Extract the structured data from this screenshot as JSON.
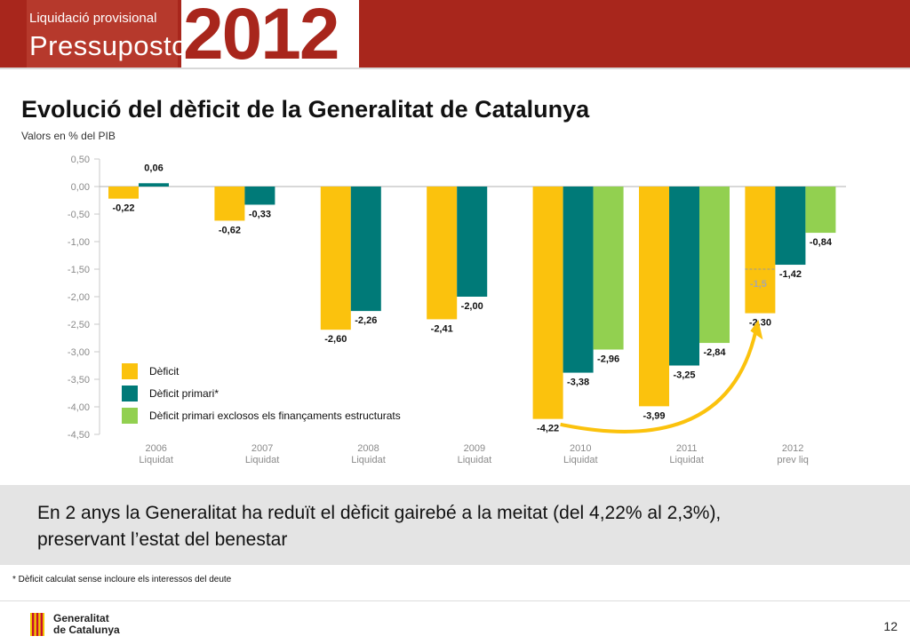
{
  "header": {
    "pretitle": "Liquidació provisional",
    "title": "Pressupostos",
    "year": "2012"
  },
  "slide": {
    "title": "Evolució del dèficit de la Generalitat de Catalunya",
    "subtitle": "Valors en % del PIB",
    "message_line1": "En 2 anys la Generalitat ha reduït el dèficit gairebé a la meitat (del 4,22% al 2,3%),",
    "message_line2": "preservant l’estat del benestar",
    "footnote": "* Dèficit calculat sense incloure els interessos del deute"
  },
  "footer": {
    "org_line1": "Generalitat",
    "org_line2": "de Catalunya",
    "page": "12"
  },
  "colors": {
    "banner": "#a8261c",
    "deficit": "#fbc20d",
    "primary": "#007a78",
    "structural": "#92d050",
    "arrow": "#fbc20d",
    "axis_text": "#8a8a8a"
  },
  "chart_data": {
    "type": "bar",
    "categories": [
      [
        "2006",
        "Liquidat"
      ],
      [
        "2007",
        "Liquidat"
      ],
      [
        "2008",
        "Liquidat"
      ],
      [
        "2009",
        "Liquidat"
      ],
      [
        "2010",
        "Liquidat"
      ],
      [
        "2011",
        "Liquidat"
      ],
      [
        "2012",
        "prev liq"
      ]
    ],
    "series": [
      {
        "name": "Dèficit",
        "color": "#fbc20d",
        "values": [
          -0.22,
          -0.62,
          -2.6,
          -2.41,
          -4.22,
          -3.99,
          -2.3
        ],
        "labels": [
          "-0,22",
          "-0,62",
          "-2,60",
          "-2,41",
          "-4,22",
          "-3,99",
          "-2,30"
        ]
      },
      {
        "name": "Dèficit primari*",
        "color": "#007a78",
        "values": [
          0.06,
          -0.33,
          -2.26,
          -2.0,
          -3.38,
          -3.25,
          -1.42
        ],
        "labels": [
          "0,06",
          "-0,33",
          "-2,26",
          "-2,00",
          "-3,38",
          "-3,25",
          "-1,42"
        ]
      },
      {
        "name": "Dèficit primari exclosos els finançaments estructurats",
        "color": "#92d050",
        "values": [
          null,
          null,
          null,
          null,
          -2.96,
          -2.84,
          -0.84
        ],
        "labels": [
          "",
          "",
          "",
          "",
          "-2,96",
          "-2,84",
          "-0,84"
        ]
      }
    ],
    "target": {
      "category_index": 6,
      "value": -1.5,
      "label": "-1,5"
    },
    "yticks": [
      0.5,
      0,
      -0.5,
      -1,
      -1.5,
      -2,
      -2.5,
      -3,
      -3.5,
      -4,
      -4.5
    ],
    "ytick_labels": [
      "0,50",
      "0,00",
      "-0,50",
      "-1,00",
      "-1,50",
      "-2,00",
      "-2,50",
      "-3,00",
      "-3,50",
      "-4,00",
      "-4,50"
    ],
    "ylim": [
      -4.5,
      0.5
    ],
    "legend_position": "bottom-left",
    "grid": false,
    "annotation": "arrow from 2010 Dèficit to 2012 Dèficit"
  }
}
